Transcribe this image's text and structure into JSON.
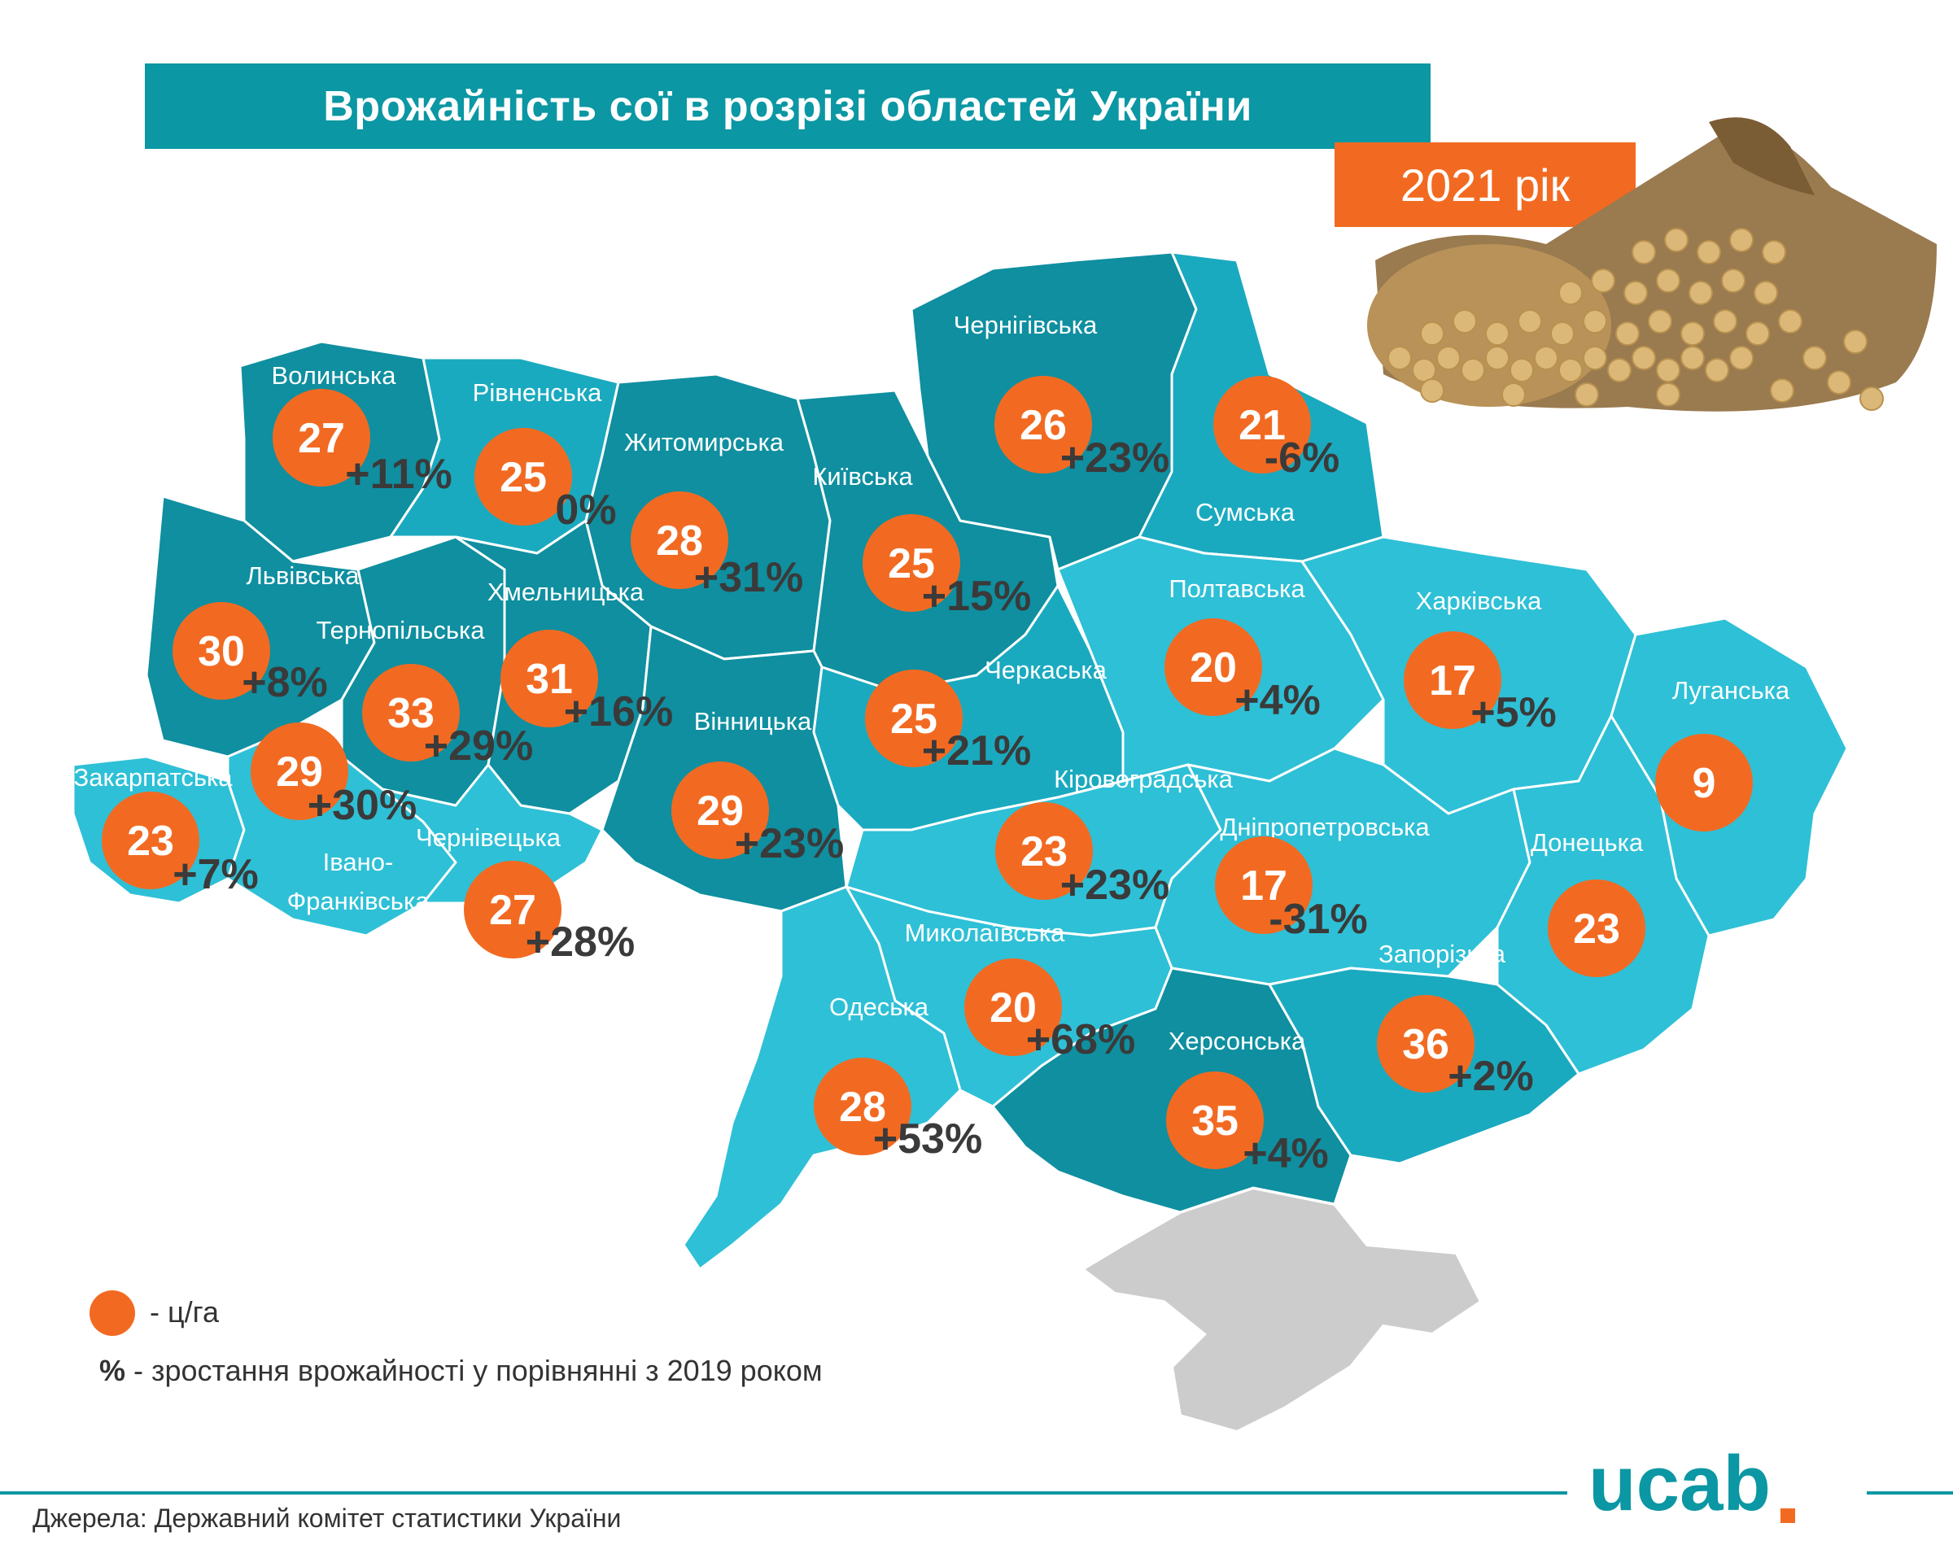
{
  "title": "Врожайність сої в розрізі областей України",
  "year_label": "2021 рік",
  "regions": [
    {
      "name": "Волинська",
      "yield": "27",
      "change": "+11%"
    },
    {
      "name": "Рівненська",
      "yield": "25",
      "change": "0%"
    },
    {
      "name": "Житомирська",
      "yield": "28",
      "change": "+31%"
    },
    {
      "name": "Київська",
      "yield": "25",
      "change": "+15%"
    },
    {
      "name": "Чернігівська",
      "yield": "26",
      "change": "+23%"
    },
    {
      "name": "Сумська",
      "yield": "21",
      "change": "-6%"
    },
    {
      "name": "Львівська",
      "yield": "30",
      "change": "+8%"
    },
    {
      "name": "Тернопільська",
      "yield": "33",
      "change": "+29%"
    },
    {
      "name": "Хмельницька",
      "yield": "31",
      "change": "+16%"
    },
    {
      "name": "Вінницька",
      "yield": "29",
      "change": "+23%"
    },
    {
      "name": "Черкаська",
      "yield": "25",
      "change": "+21%"
    },
    {
      "name": "Полтавська",
      "yield": "20",
      "change": "+4%"
    },
    {
      "name": "Харківська",
      "yield": "17",
      "change": "+5%"
    },
    {
      "name": "Луганська",
      "yield": "9",
      "change": ""
    },
    {
      "name": "Закарпатська",
      "yield": "23",
      "change": "+7%"
    },
    {
      "name": "Івано-Франківська",
      "yield": "29",
      "change": "+30%"
    },
    {
      "name": "Чернівецька",
      "yield": "27",
      "change": "+28%"
    },
    {
      "name": "Кіровоградська",
      "yield": "23",
      "change": "+23%"
    },
    {
      "name": "Дніпропетровська",
      "yield": "17",
      "change": "-31%"
    },
    {
      "name": "Донецька",
      "yield": "23",
      "change": ""
    },
    {
      "name": "Миколаївська",
      "yield": "20",
      "change": "+68%"
    },
    {
      "name": "Одеська",
      "yield": "28",
      "change": "+53%"
    },
    {
      "name": "Херсонська",
      "yield": "35",
      "change": "+4%"
    },
    {
      "name": "Запорізька",
      "yield": "36",
      "change": "+2%"
    }
  ],
  "label_ivano_1": "Івано-",
  "label_ivano_2": "Франківська",
  "legend": {
    "dot_label": "- ц/га",
    "pct_symbol": "%",
    "pct_label": " - зростання врожайності у порівнянні  з 2019 роком"
  },
  "source": "Джерела: Державний комітет статистики України",
  "logo_text": "ucab",
  "colors": {
    "teal_header": "#0b97a3",
    "orange": "#f26a21",
    "dark_region": "#0f8fa0",
    "mid_region": "#1aaabf",
    "light_region": "#2ec0d6",
    "crimea": "#cccccc"
  }
}
